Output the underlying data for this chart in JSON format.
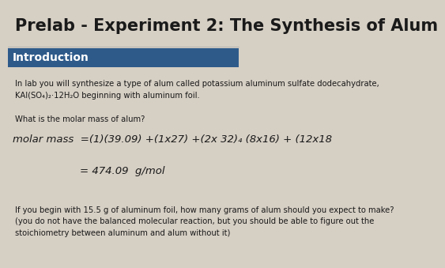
{
  "title": "Prelab - Experiment 2: The Synthesis of Alum",
  "title_fontsize": 15,
  "title_color": "#1a1a1a",
  "header_text": "Introduction",
  "header_bg": "#2e5a8a",
  "header_text_color": "#ffffff",
  "header_fontsize": 10,
  "body_text1": "In lab you will synthesize a type of alum called potassium aluminum sulfate dodecahydrate,\nKAl(SO₄)₂·12H₂O beginning with aluminum foil.",
  "body_text2": "What is the molar mass of alum?",
  "handwritten_line1": "molar mass  =(1)(39.09) +(1x27) +(2x 32)₄ (8x16) + (12x18",
  "handwritten_line2": "                    = 474.09  g/mol",
  "body_text3": "If you begin with 15.5 g of aluminum foil, how many grams of alum should you expect to make?\n(you do not have the balanced molecular reaction, but you should be able to figure out the\nstoichiometry between aluminum and alum without it)",
  "bg_color": "#d6cfc4",
  "body_fontsize": 7.2,
  "handwriting_fontsize": 9.5,
  "text_color": "#1a1a1a",
  "line_color": "#aaaaaa"
}
